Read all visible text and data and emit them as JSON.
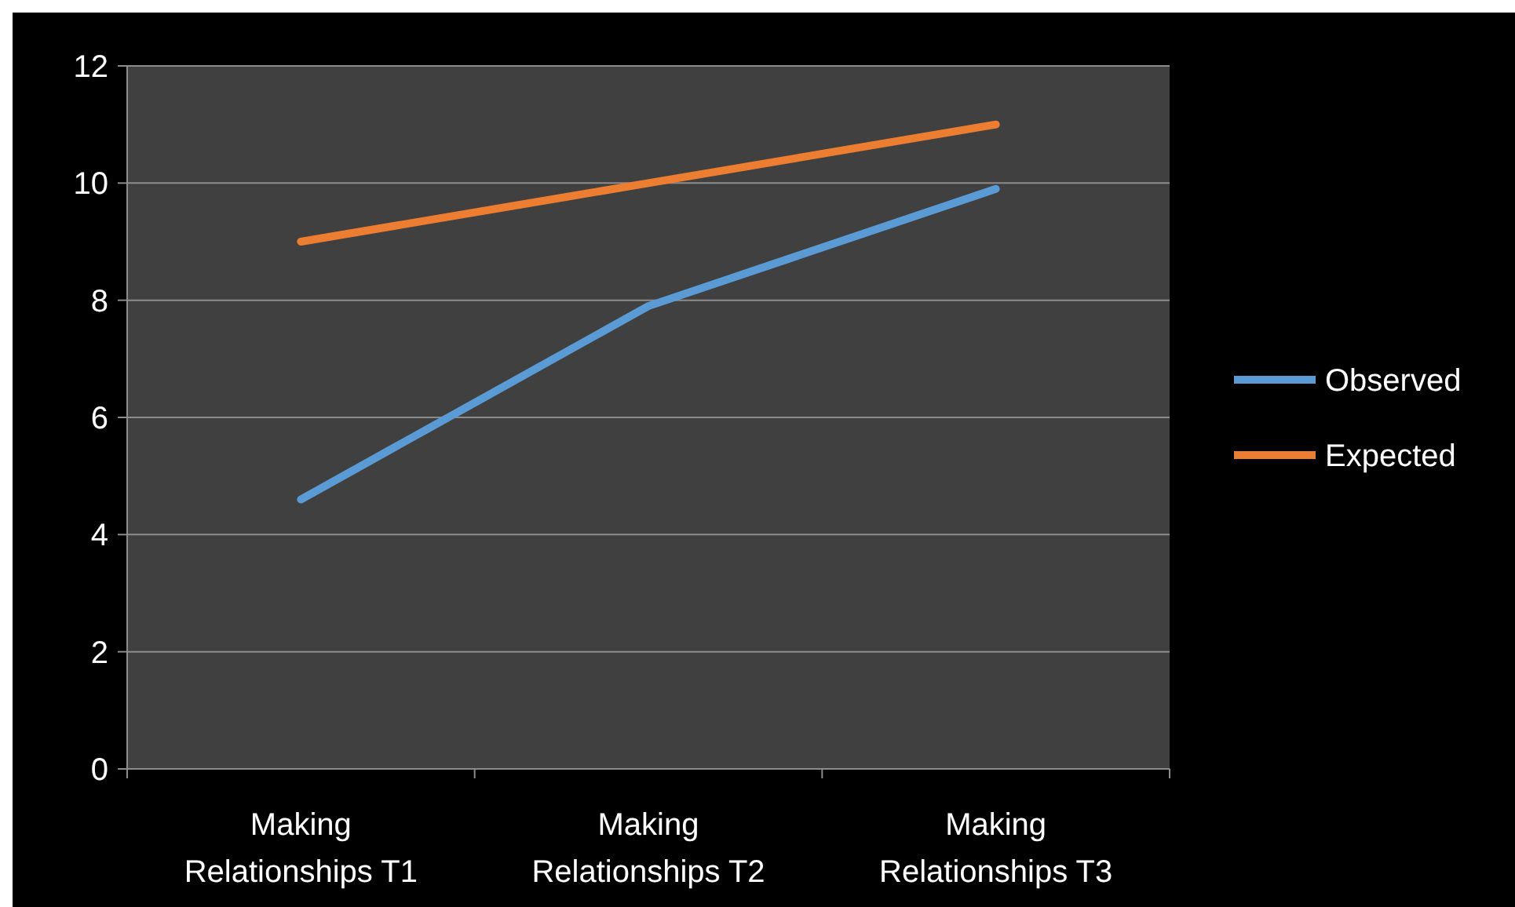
{
  "chart_data": {
    "type": "line",
    "categories": [
      "Making Relationships T1",
      "Making Relationships T2",
      "Making Relationships T3"
    ],
    "series": [
      {
        "name": "Observed",
        "color": "#5b9bd5",
        "values": [
          4.6,
          7.9,
          9.9
        ]
      },
      {
        "name": "Expected",
        "color": "#ed7d31",
        "values": [
          9,
          10,
          11
        ]
      }
    ],
    "ylim": [
      0,
      12
    ],
    "yticks": [
      0,
      2,
      4,
      6,
      8,
      10,
      12
    ],
    "grid": "y",
    "legend": "right",
    "marker": "none",
    "line_style": "solid"
  }
}
